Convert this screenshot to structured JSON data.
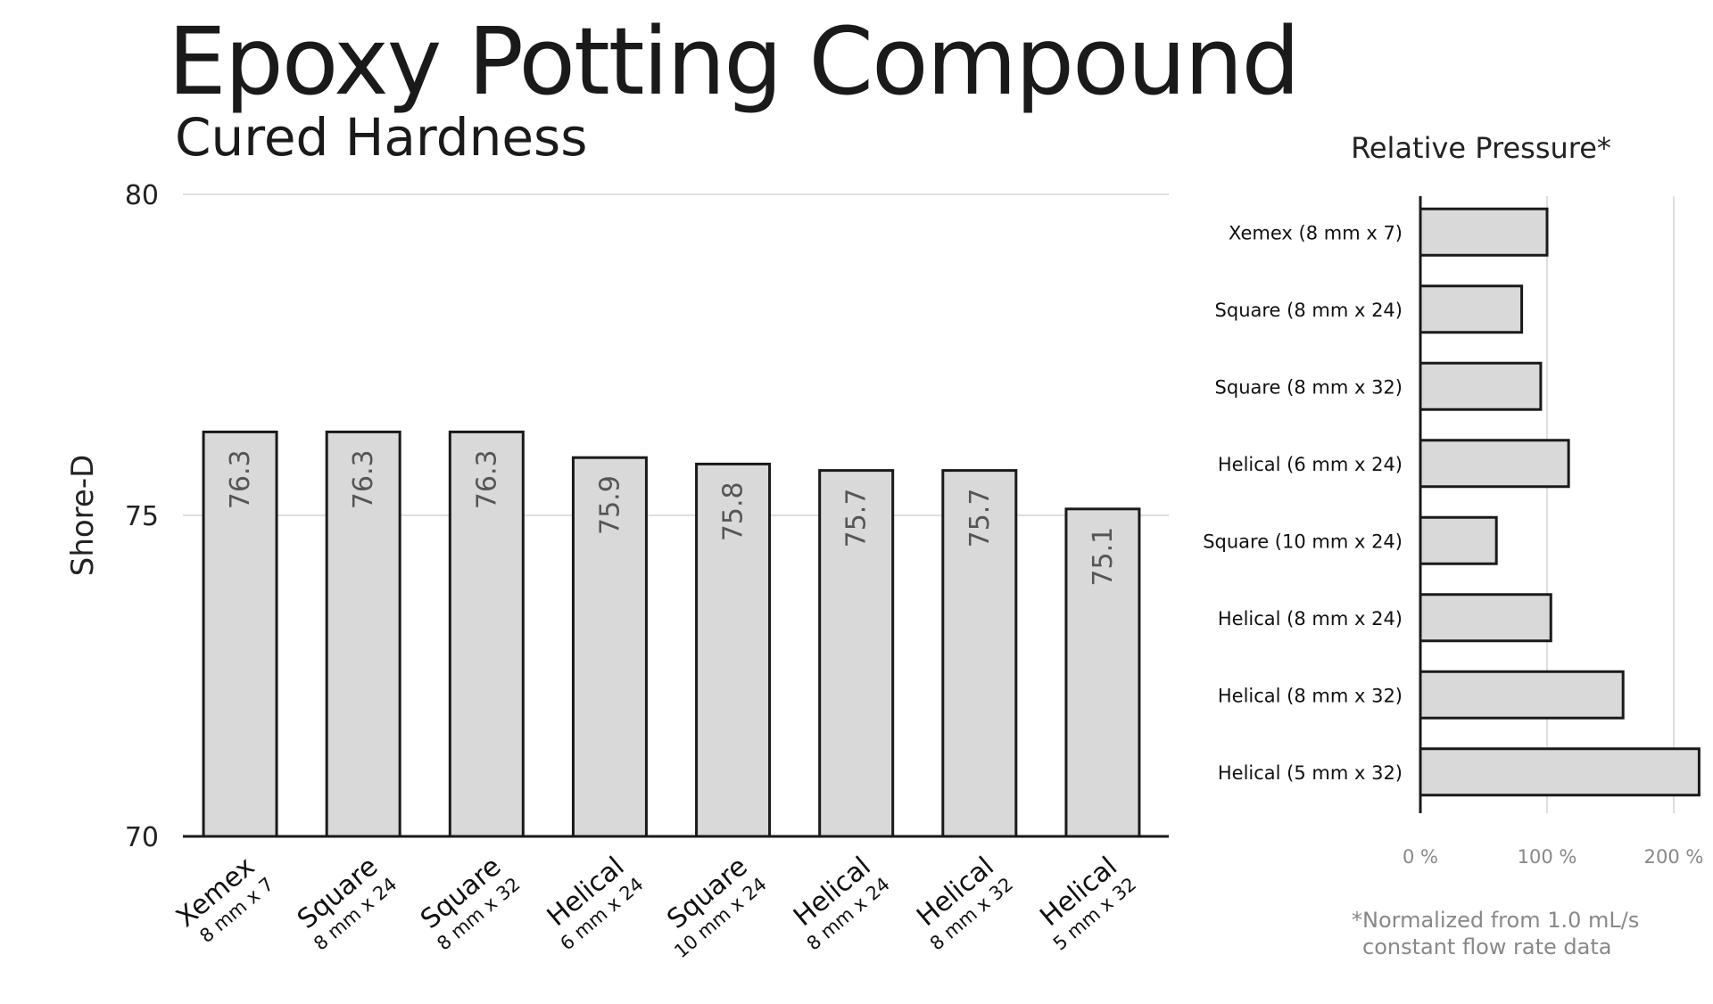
{
  "chart_data": [
    {
      "type": "bar",
      "title": "Epoxy Potting Compound",
      "subtitle": "Cured Hardness",
      "ylabel": "Shore-D",
      "ylim": [
        70,
        80
      ],
      "yticks": [
        70,
        75,
        80
      ],
      "grid": true,
      "categories": [
        {
          "name": "Xemex",
          "detail": "8 mm x 7"
        },
        {
          "name": "Square",
          "detail": "8 mm x 24"
        },
        {
          "name": "Square",
          "detail": "8 mm x 32"
        },
        {
          "name": "Helical",
          "detail": "6 mm x 24"
        },
        {
          "name": "Square",
          "detail": "10 mm x 24"
        },
        {
          "name": "Helical",
          "detail": "8 mm x 24"
        },
        {
          "name": "Helical",
          "detail": "8 mm x 32"
        },
        {
          "name": "Helical",
          "detail": "5 mm x 32"
        }
      ],
      "values": [
        76.3,
        76.3,
        76.3,
        75.9,
        75.8,
        75.7,
        75.7,
        75.1
      ],
      "value_labels": [
        "76.3",
        "76.3",
        "76.3",
        "75.9",
        "75.8",
        "75.7",
        "75.7",
        "75.1"
      ],
      "bar_color": "#d9d9d9",
      "edge_color": "#1a1a1a"
    },
    {
      "type": "bar",
      "orientation": "horizontal",
      "title": "Relative Pressure*",
      "categories": [
        "Xemex (8 mm x 7)",
        "Square (8 mm x 24)",
        "Square (8 mm x 32)",
        "Helical (6 mm x 24)",
        "Square (10 mm x 24)",
        "Helical (8 mm x 24)",
        "Helical  (8 mm x 32)",
        "Helical (5 mm x 32)"
      ],
      "values": [
        100,
        80,
        95,
        117,
        60,
        103,
        160,
        220
      ],
      "xlim": [
        0,
        220
      ],
      "xticks": [
        0,
        100,
        200
      ],
      "xtick_labels": [
        "0 %",
        "100 %",
        "200 %"
      ],
      "grid": true,
      "footnote": [
        "*Normalized from 1.0 mL/s",
        "constant flow rate data"
      ],
      "bar_color": "#d9d9d9",
      "edge_color": "#1a1a1a"
    }
  ]
}
